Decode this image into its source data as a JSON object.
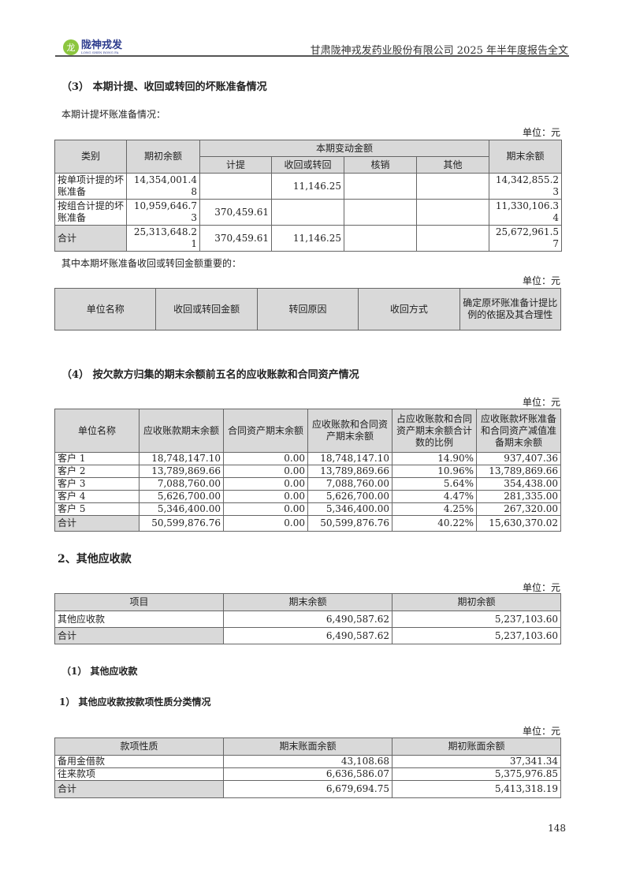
{
  "header": {
    "logo_text": "陇神戎发",
    "logo_sub": "LONG SHEN RONG FA",
    "doc_title": "甘肃陇神戎发药业股份有限公司 2025 年半年度报告全文"
  },
  "section3": {
    "title": "（3） 本期计提、收回或转回的坏账准备情况",
    "intro": "本期计提坏账准备情况：",
    "unit": "单位：元",
    "headers": {
      "category": "类别",
      "opening": "期初余额",
      "change": "本期变动金额",
      "provision": "计提",
      "recovery": "收回或转回",
      "writeoff": "核销",
      "other": "其他",
      "closing": "期末余额"
    },
    "rows": [
      [
        "按单项计提的坏账准备",
        "14,354,001.48",
        "",
        "11,146.25",
        "",
        "",
        "14,342,855.23"
      ],
      [
        "按组合计提的坏账准备",
        "10,959,646.73",
        "370,459.61",
        "",
        "",
        "",
        "11,330,106.34"
      ],
      [
        "合计",
        "25,313,648.21",
        "370,459.61",
        "11,146.25",
        "",
        "",
        "25,672,961.57"
      ]
    ],
    "sub_intro": "其中本期坏账准备收回或转回金额重要的：",
    "sub_unit": "单位：元",
    "sub_headers": [
      "单位名称",
      "收回或转回金额",
      "转回原因",
      "收回方式",
      "确定原坏账准备计提比例的依据及其合理性"
    ]
  },
  "section4": {
    "title": "（4） 按欠款方归集的期末余额前五名的应收账款和合同资产情况",
    "unit": "单位：元",
    "headers": [
      "单位名称",
      "应收账款期末余额",
      "合同资产期末余额",
      "应收账款和合同资产期末余额",
      "占应收账款和合同资产期末余额合计数的比例",
      "应收账款坏账准备和合同资产减值准备期末余额"
    ],
    "rows": [
      [
        "客户 1",
        "18,748,147.10",
        "0.00",
        "18,748,147.10",
        "14.90%",
        "937,407.36"
      ],
      [
        "客户 2",
        "13,789,869.66",
        "0.00",
        "13,789,869.66",
        "10.96%",
        "13,789,869.66"
      ],
      [
        "客户 3",
        "7,088,760.00",
        "0.00",
        "7,088,760.00",
        "5.64%",
        "354,438.00"
      ],
      [
        "客户 4",
        "5,626,700.00",
        "0.00",
        "5,626,700.00",
        "4.47%",
        "281,335.00"
      ],
      [
        "客户 5",
        "5,346,400.00",
        "0.00",
        "5,346,400.00",
        "4.25%",
        "267,320.00"
      ],
      [
        "合计",
        "50,599,876.76",
        "0.00",
        "50,599,876.76",
        "40.22%",
        "15,630,370.02"
      ]
    ]
  },
  "other_receivables": {
    "title": "2、其他应收款",
    "unit": "单位：元",
    "headers": [
      "项目",
      "期末余额",
      "期初余额"
    ],
    "rows": [
      [
        "其他应收款",
        "6,490,587.62",
        "5,237,103.60"
      ],
      [
        "合计",
        "6,490,587.62",
        "5,237,103.60"
      ]
    ],
    "sub1_title": "（1） 其他应收款",
    "sub2_title": "1） 其他应收款按款项性质分类情况",
    "nature_unit": "单位：元",
    "nature_headers": [
      "款项性质",
      "期末账面余额",
      "期初账面余额"
    ],
    "nature_rows": [
      [
        "备用金借款",
        "43,108.68",
        "37,341.34"
      ],
      [
        "往来款项",
        "6,636,586.07",
        "5,375,976.85"
      ],
      [
        "合计",
        "6,679,694.75",
        "5,413,318.19"
      ]
    ]
  },
  "page_number": "148"
}
